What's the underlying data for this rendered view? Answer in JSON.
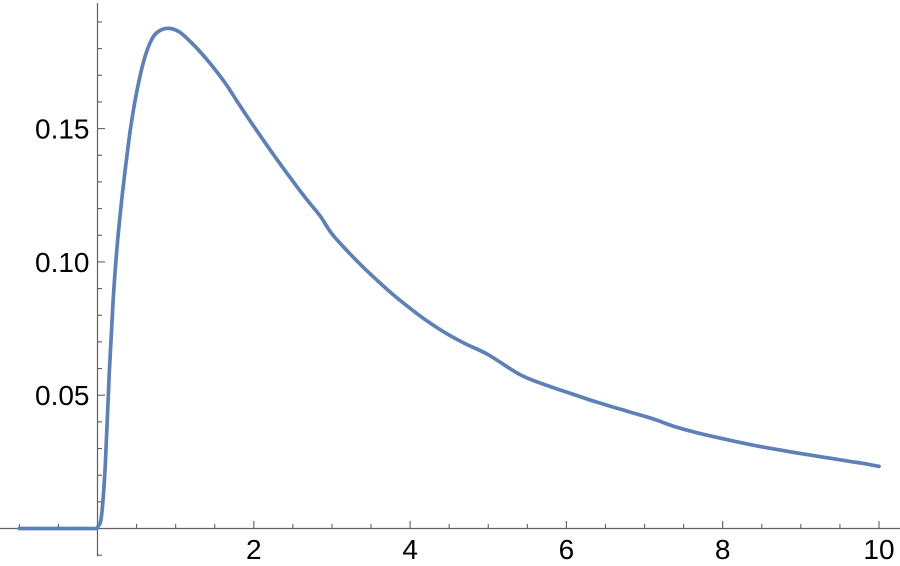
{
  "chart_data": {
    "type": "line",
    "title": "",
    "xlabel": "",
    "ylabel": "",
    "grid": false,
    "legend": null,
    "xlim": [
      -1.2476,
      10.2686
    ],
    "ylim": [
      -0.014066,
      0.19824
    ],
    "background_color": "#ffffff",
    "axis_color": "#5f5f5f",
    "tick_label_color": "#000000",
    "x_axis": {
      "major_ticks": [
        {
          "value": 2,
          "label": "2"
        },
        {
          "value": 4,
          "label": "4"
        },
        {
          "value": 6,
          "label": "6"
        },
        {
          "value": 8,
          "label": "8"
        },
        {
          "value": 10,
          "label": "10"
        }
      ],
      "minor_ticks": [
        -1.0,
        -0.5,
        0.5,
        1.0,
        1.5,
        2.5,
        3.0,
        3.5,
        4.5,
        5.0,
        5.5,
        6.5,
        7.0,
        7.5,
        8.5,
        9.0,
        9.5
      ]
    },
    "y_axis": {
      "major_ticks": [
        {
          "value": 0.05,
          "label": "0.05"
        },
        {
          "value": 0.1,
          "label": "0.10"
        },
        {
          "value": 0.15,
          "label": "0.15"
        }
      ],
      "minor_ticks": [
        -0.01,
        0.01,
        0.02,
        0.03,
        0.04,
        0.06,
        0.07,
        0.08,
        0.09,
        0.11,
        0.12,
        0.13,
        0.14,
        0.16,
        0.17,
        0.18,
        0.19
      ]
    },
    "series": [
      {
        "name": "curve",
        "color": "#5E81B5",
        "stroke_width": 3.7,
        "points": [
          [
            -1.0,
            0
          ],
          [
            -0.7,
            0
          ],
          [
            -0.4,
            0
          ],
          [
            -0.15,
            0
          ],
          [
            -0.02,
            0
          ],
          [
            0.0,
            0.0005
          ],
          [
            0.05,
            0.0045
          ],
          [
            0.1,
            0.024
          ],
          [
            0.15,
            0.058
          ],
          [
            0.2,
            0.0855
          ],
          [
            0.25,
            0.1055
          ],
          [
            0.3,
            0.1205
          ],
          [
            0.35,
            0.1335
          ],
          [
            0.42,
            0.1495
          ],
          [
            0.5,
            0.1635
          ],
          [
            0.6,
            0.1762
          ],
          [
            0.7,
            0.1838
          ],
          [
            0.8,
            0.1868
          ],
          [
            0.92,
            0.1876
          ],
          [
            1.05,
            0.1862
          ],
          [
            1.2,
            0.1823
          ],
          [
            1.35,
            0.1776
          ],
          [
            1.5,
            0.1723
          ],
          [
            1.65,
            0.1664
          ],
          [
            1.8,
            0.1596
          ],
          [
            1.95,
            0.153
          ],
          [
            2.1,
            0.1466
          ],
          [
            2.25,
            0.1403
          ],
          [
            2.4,
            0.1342
          ],
          [
            2.55,
            0.1283
          ],
          [
            2.7,
            0.1226
          ],
          [
            2.85,
            0.1172
          ],
          [
            3.0,
            0.1105
          ],
          [
            3.2,
            0.104
          ],
          [
            3.4,
            0.098
          ],
          [
            3.6,
            0.0925
          ],
          [
            3.8,
            0.0873
          ],
          [
            4.0,
            0.0826
          ],
          [
            4.2,
            0.0782
          ],
          [
            4.45,
            0.0734
          ],
          [
            4.7,
            0.0694
          ],
          [
            5.0,
            0.0652
          ],
          [
            5.4,
            0.0578
          ],
          [
            5.7,
            0.0542
          ],
          [
            6.0,
            0.0512
          ],
          [
            6.4,
            0.0473
          ],
          [
            6.8,
            0.0438
          ],
          [
            7.1,
            0.0412
          ],
          [
            7.4,
            0.0381
          ],
          [
            7.7,
            0.0357
          ],
          [
            8.0,
            0.0337
          ],
          [
            8.4,
            0.0312
          ],
          [
            8.7,
            0.0296
          ],
          [
            9.0,
            0.0281
          ],
          [
            9.3,
            0.0267
          ],
          [
            9.6,
            0.0253
          ],
          [
            9.8,
            0.0244
          ],
          [
            10.0,
            0.0233
          ]
        ]
      }
    ]
  }
}
